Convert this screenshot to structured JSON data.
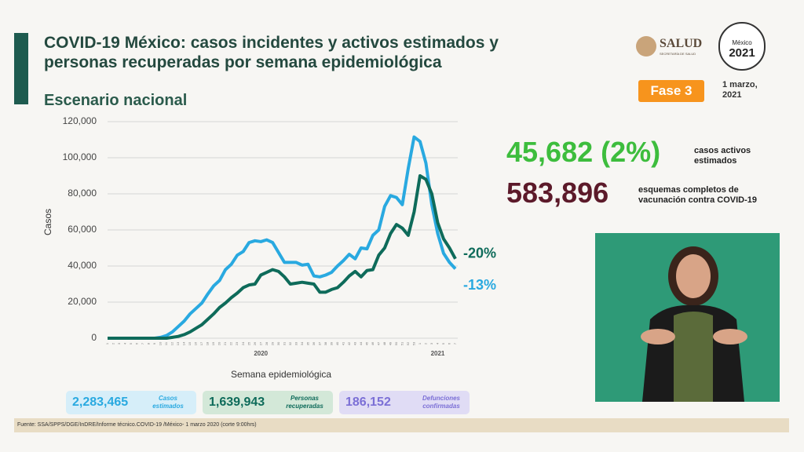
{
  "header": {
    "title_line1": "COVID-19 México: casos incidentes y activos estimados y",
    "title_line2": "personas recuperadas por semana epidemiológica",
    "subtitle": "Escenario nacional",
    "logo_text": "SALUD",
    "logo_subtext": "SECRETARÍA DE SALUD",
    "emblem_text": "México",
    "emblem_year": "2021",
    "phase": "Fase 3",
    "date": "1 marzo, 2021"
  },
  "chart_data": {
    "type": "line",
    "x_label": "Semana epidemiológica",
    "y_label": "Casos",
    "categories": [
      "1",
      "2",
      "3",
      "4",
      "5",
      "6",
      "7",
      "8",
      "9",
      "10",
      "11",
      "12",
      "13",
      "14",
      "15",
      "16",
      "17",
      "18",
      "19",
      "20",
      "21",
      "22",
      "23",
      "24",
      "25",
      "26",
      "27",
      "28",
      "29",
      "30",
      "31",
      "32",
      "33",
      "34",
      "35",
      "36",
      "37",
      "38",
      "39",
      "40",
      "41",
      "42",
      "43",
      "44",
      "45",
      "46",
      "47",
      "48",
      "49",
      "50",
      "51",
      "52",
      "53",
      "1",
      "2",
      "3",
      "4",
      "5",
      "6",
      "7"
    ],
    "x_groups": [
      "2020",
      "2021"
    ],
    "series": [
      {
        "name": "Casos estimados",
        "color": "#29a9e0",
        "annotation": "-13%",
        "values": [
          0,
          0,
          0,
          0,
          0,
          0,
          0,
          0,
          0,
          500,
          1500,
          3500,
          6500,
          9500,
          13500,
          16500,
          19500,
          24500,
          29000,
          32000,
          38000,
          41000,
          46000,
          48000,
          53000,
          54000,
          53500,
          54500,
          53000,
          47500,
          42000,
          42000,
          42000,
          40500,
          41000,
          34500,
          34000,
          35000,
          36500,
          40000,
          43000,
          46500,
          44000,
          50000,
          49500,
          57000,
          60000,
          73000,
          79000,
          78000,
          74000,
          94000,
          111500,
          109000,
          97000,
          74000,
          58000,
          47000,
          42000,
          38500
        ]
      },
      {
        "name": "Personas recuperadas",
        "color": "#0e6b5a",
        "annotation": "-20%",
        "values": [
          0,
          0,
          0,
          0,
          0,
          0,
          0,
          0,
          0,
          0,
          0,
          500,
          1000,
          2000,
          3500,
          5500,
          7500,
          10500,
          13500,
          17000,
          19500,
          22500,
          25000,
          28000,
          29500,
          30000,
          35000,
          36500,
          38000,
          37000,
          34000,
          30000,
          30500,
          31000,
          30500,
          30000,
          25500,
          25500,
          27000,
          28000,
          31000,
          34500,
          37000,
          34000,
          37500,
          38000,
          46000,
          50000,
          58000,
          63000,
          61000,
          57000,
          70000,
          90000,
          88000,
          80000,
          64000,
          55000,
          50000,
          44000
        ]
      }
    ],
    "ylim": [
      0,
      120000
    ],
    "yticks": [
      0,
      {
        "value": 20000,
        "label": "20,000"
      },
      {
        "value": 40000,
        "label": "40,000"
      },
      {
        "value": 60000,
        "label": "60,000"
      },
      {
        "value": 80000,
        "label": "80,000"
      },
      {
        "value": 100000,
        "label": "100,000"
      },
      {
        "value": 120000,
        "label": "120,000"
      }
    ],
    "grid": true
  },
  "indicators": [
    {
      "value": "45,682 (2%)",
      "label_line1": "casos activos",
      "label_line2": "estimados"
    },
    {
      "value": "583,896",
      "label_line1": "esquemas completos de",
      "label_line2": "vacunación contra COVID-19"
    }
  ],
  "summary": [
    {
      "value": "2,283,465"
    },
    {
      "value": "1,639,943"
    },
    {
      "value": "186,152",
      "label": "Defunciones confirmadas"
    }
  ],
  "source": "Fuente: SSA/SPPS/DGE/InDRE/Informe técnico.COVID-19 /México- 1 marzo 2020 (corte 9:00hrs)"
}
